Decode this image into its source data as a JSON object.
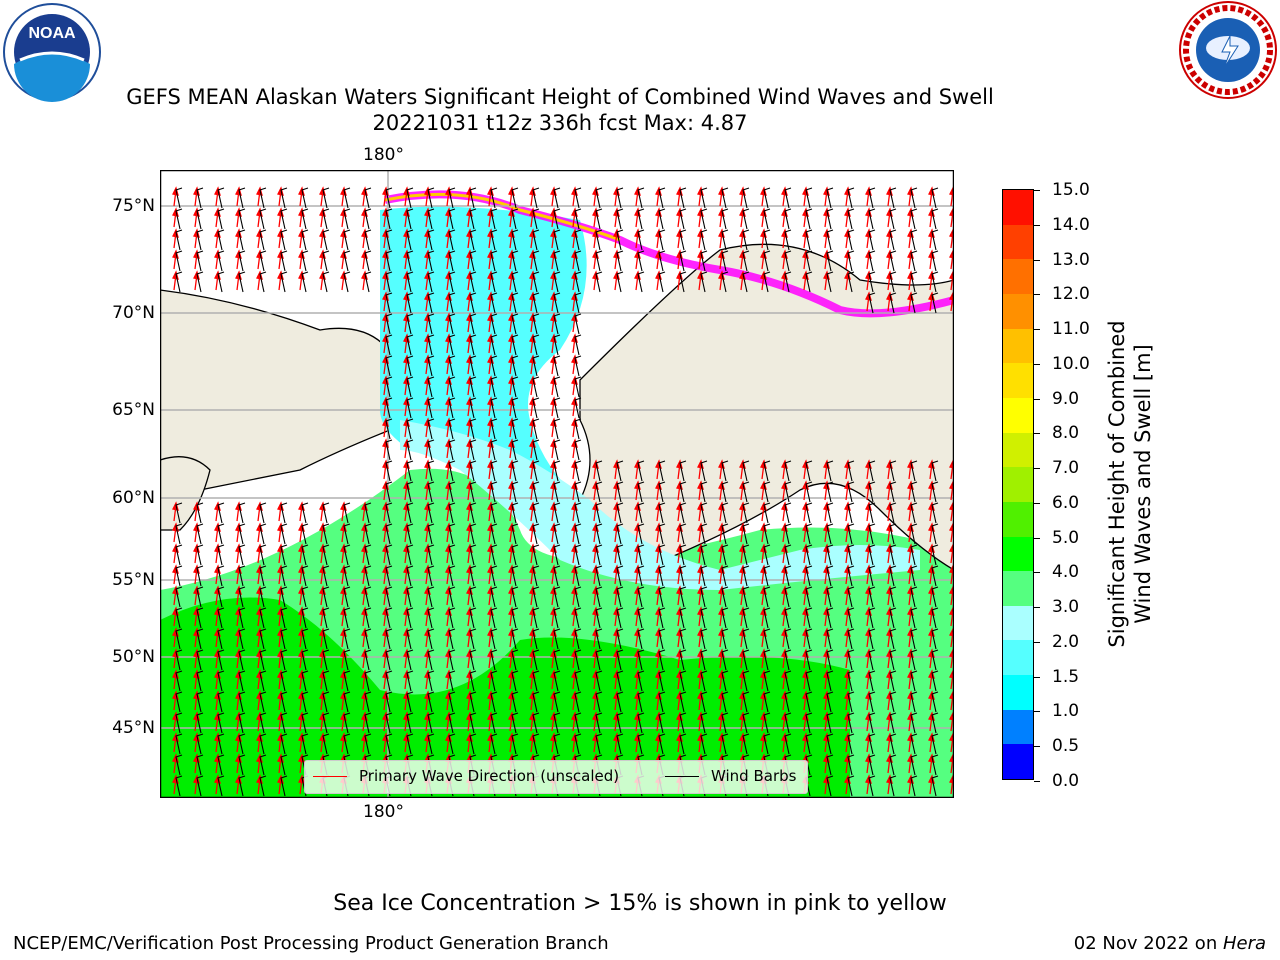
{
  "title": {
    "line1": "GEFS MEAN Alaskan Waters Significant Height of Combined Wind Waves and Swell",
    "line2": "20221031 t12z 336h fcst    Max: 4.87"
  },
  "logos": {
    "left": {
      "icon": "noaa-logo",
      "text": "NOAA"
    },
    "right": {
      "icon": "nws-logo",
      "text": "NATIONAL WEATHER SERVICE"
    }
  },
  "map": {
    "lat_labels": [
      "75°N",
      "70°N",
      "65°N",
      "60°N",
      "55°N",
      "50°N",
      "45°N"
    ],
    "lon_label_top": "180°",
    "lon_label_bottom": "180°"
  },
  "legend": {
    "wave_direction": "Primary Wave Direction (unscaled)",
    "wind_barbs": "Wind Barbs",
    "wave_color": "#ff0000",
    "barb_color": "#000000"
  },
  "colorbar": {
    "label_line1": "Significant Height of Combined",
    "label_line2": "Wind Waves and Swell [m]",
    "ticks": [
      "15.0",
      "14.0",
      "13.0",
      "12.0",
      "11.0",
      "10.0",
      "9.0",
      "8.0",
      "7.0",
      "6.0",
      "5.0",
      "4.0",
      "3.0",
      "2.0",
      "1.5",
      "1.0",
      "0.5",
      "0.0"
    ],
    "colors": [
      "#0000ff",
      "#0080ff",
      "#00ffff",
      "#55ffff",
      "#aaffff",
      "#55ff80",
      "#00ff00",
      "#50f000",
      "#a0f000",
      "#d0f000",
      "#ffff00",
      "#ffe000",
      "#ffc000",
      "#ff9000",
      "#ff7000",
      "#ff4000",
      "#ff1000"
    ]
  },
  "footer": {
    "note": "Sea Ice Concentration > 15% is shown in pink to yellow",
    "left": "NCEP/EMC/Verification Post Processing Product Generation Branch",
    "date": "02 Nov 2022 on ",
    "host": "Hera"
  }
}
